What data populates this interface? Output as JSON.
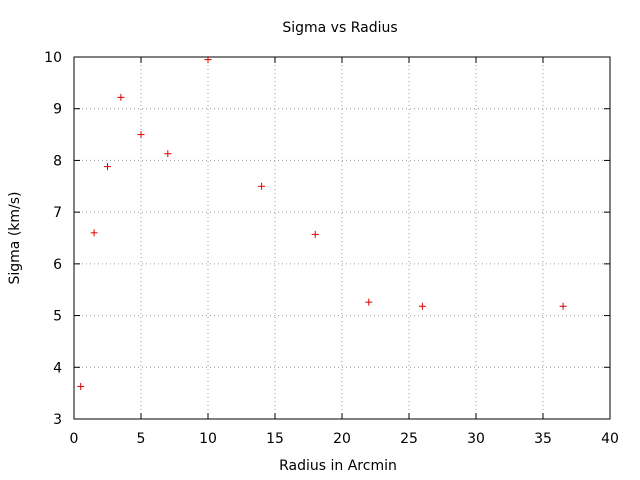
{
  "chart_data": {
    "type": "scatter",
    "title": "Sigma vs Radius",
    "xlabel": "Radius in Arcmin",
    "ylabel": "Sigma (km/s)",
    "xlim": [
      0,
      40
    ],
    "ylim": [
      3,
      10
    ],
    "xticks": [
      0,
      5,
      10,
      15,
      20,
      25,
      30,
      35,
      40
    ],
    "yticks": [
      3,
      4,
      5,
      6,
      7,
      8,
      9,
      10
    ],
    "grid": true,
    "legend": "none",
    "marker": "+",
    "marker_color": "#e00000",
    "series": [
      {
        "points": [
          {
            "x": 0.5,
            "y": 3.63
          },
          {
            "x": 1.5,
            "y": 6.6
          },
          {
            "x": 2.5,
            "y": 7.88
          },
          {
            "x": 3.5,
            "y": 9.22
          },
          {
            "x": 5.0,
            "y": 8.5
          },
          {
            "x": 7.0,
            "y": 8.13
          },
          {
            "x": 10.0,
            "y": 9.95
          },
          {
            "x": 14.0,
            "y": 7.5
          },
          {
            "x": 18.0,
            "y": 6.57
          },
          {
            "x": 22.0,
            "y": 5.26
          },
          {
            "x": 26.0,
            "y": 5.18
          },
          {
            "x": 36.5,
            "y": 5.18
          }
        ]
      }
    ]
  }
}
